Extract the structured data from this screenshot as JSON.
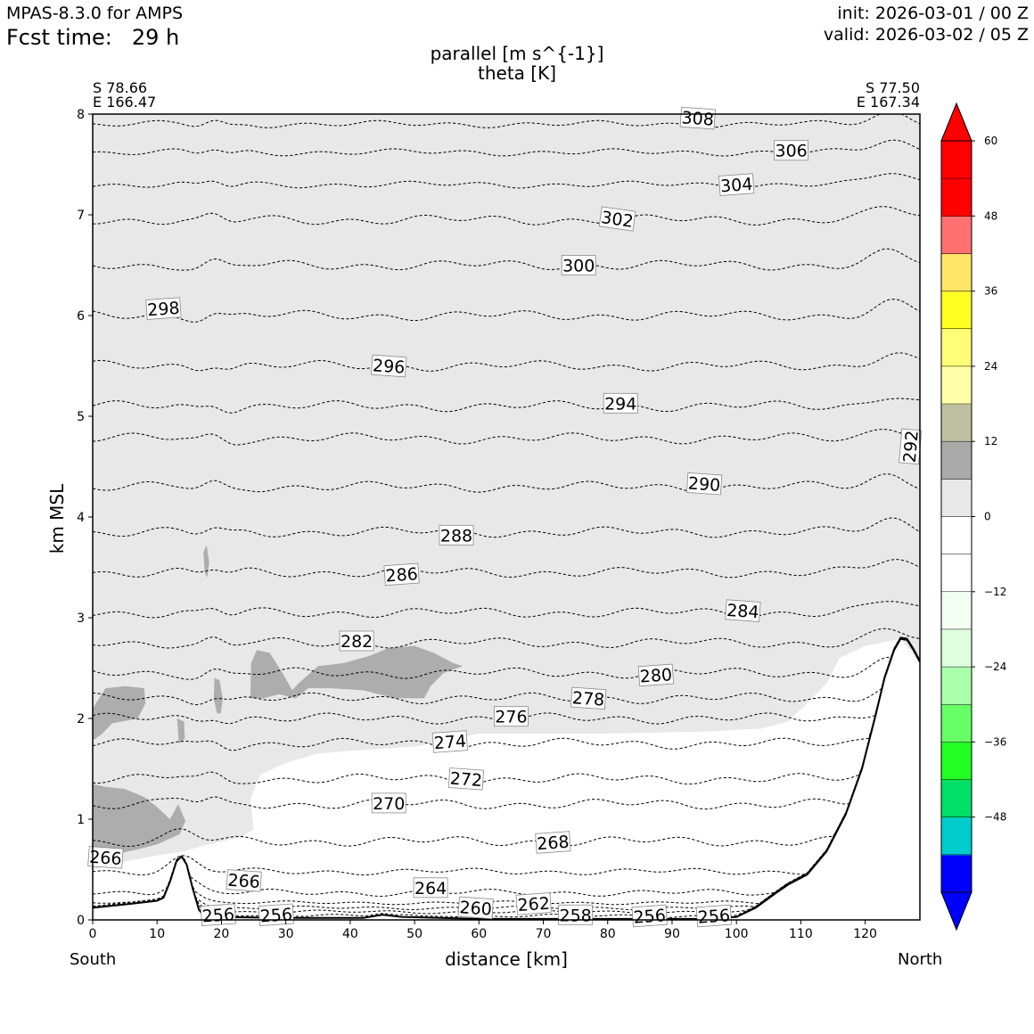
{
  "header": {
    "model": "MPAS-8.3.0 for AMPS",
    "fcst_label": "Fcst time:",
    "fcst_value": "29 h",
    "init": "init: 2026-03-01 / 00 Z",
    "valid": "valid: 2026-03-02 / 05 Z"
  },
  "endpoints": {
    "left_lat": "S 78.66",
    "left_lon": "E 166.47",
    "right_lat": "S 77.50",
    "right_lon": "E 167.34",
    "left_dir": "South",
    "right_dir": "North"
  },
  "chart_data": {
    "type": "cross-section",
    "title": "parallel [m s^{-1}]",
    "subtitle": "theta [K]",
    "xlabel": "distance [km]",
    "ylabel": "km MSL",
    "xlim": [
      0,
      128.5
    ],
    "ylim": [
      0,
      8
    ],
    "xticks": [
      0,
      10,
      20,
      30,
      40,
      50,
      60,
      70,
      80,
      90,
      100,
      110,
      120
    ],
    "yticks": [
      0,
      1,
      2,
      3,
      4,
      5,
      6,
      7,
      8
    ],
    "terrain": [
      [
        0,
        0.12
      ],
      [
        6,
        0.16
      ],
      [
        10,
        0.19
      ],
      [
        11,
        0.22
      ],
      [
        12,
        0.38
      ],
      [
        13,
        0.58
      ],
      [
        13.8,
        0.63
      ],
      [
        14.6,
        0.55
      ],
      [
        15.5,
        0.32
      ],
      [
        16.5,
        0.1
      ],
      [
        17.5,
        0.03
      ],
      [
        30,
        0.02
      ],
      [
        42,
        0.02
      ],
      [
        45,
        0.05
      ],
      [
        48,
        0.03
      ],
      [
        60,
        0.01
      ],
      [
        80,
        0.01
      ],
      [
        96,
        0.01
      ],
      [
        100,
        0.03
      ],
      [
        103,
        0.12
      ],
      [
        106,
        0.26
      ],
      [
        108,
        0.35
      ],
      [
        111,
        0.45
      ],
      [
        114,
        0.68
      ],
      [
        117,
        1.05
      ],
      [
        119.5,
        1.5
      ],
      [
        121.5,
        2.0
      ],
      [
        123,
        2.4
      ],
      [
        124.5,
        2.68
      ],
      [
        125.5,
        2.79
      ],
      [
        126.5,
        2.78
      ],
      [
        127.5,
        2.68
      ],
      [
        128.5,
        2.56
      ]
    ],
    "theta_levels": [
      {
        "v": 256,
        "y": 0.04,
        "amp": 0.01,
        "labels": [
          {
            "x": 19.5,
            "y": 0.05
          },
          {
            "x": 28.5,
            "y": 0.05
          },
          {
            "x": 86.5,
            "y": 0.04
          },
          {
            "x": 96.5,
            "y": 0.04
          }
        ]
      },
      {
        "v": 258,
        "y": 0.08,
        "amp": 0.01,
        "labels": [
          {
            "x": 75,
            "y": 0.05
          }
        ]
      },
      {
        "v": 260,
        "y": 0.12,
        "amp": 0.01,
        "labels": [
          {
            "x": 59.5,
            "y": 0.12
          }
        ]
      },
      {
        "v": 262,
        "y": 0.17,
        "amp": 0.01,
        "labels": [
          {
            "x": 68.5,
            "y": 0.16
          }
        ]
      },
      {
        "v": 264,
        "y": 0.27,
        "amp": 0.02,
        "labels": [
          {
            "x": 52.5,
            "y": 0.32
          }
        ]
      },
      {
        "v": 266,
        "y": 0.48,
        "amp": 0.02,
        "labels": [
          {
            "x": 23.5,
            "y": 0.39
          },
          {
            "x": 2.0,
            "y": 0.62
          }
        ]
      },
      {
        "v": 268,
        "y": 0.78,
        "amp": 0.03,
        "labels": [
          {
            "x": 71.5,
            "y": 0.77
          }
        ]
      },
      {
        "v": 270,
        "y": 1.15,
        "amp": 0.03,
        "labels": [
          {
            "x": 46.0,
            "y": 1.16
          }
        ]
      },
      {
        "v": 272,
        "y": 1.4,
        "amp": 0.03,
        "labels": [
          {
            "x": 58.0,
            "y": 1.4
          }
        ]
      },
      {
        "v": 274,
        "y": 1.75,
        "amp": 0.03,
        "labels": [
          {
            "x": 55.5,
            "y": 1.77
          }
        ]
      },
      {
        "v": 276,
        "y": 2.0,
        "amp": 0.03,
        "labels": [
          {
            "x": 65.0,
            "y": 2.02
          }
        ]
      },
      {
        "v": 278,
        "y": 2.2,
        "amp": 0.03,
        "labels": [
          {
            "x": 77.0,
            "y": 2.2
          }
        ]
      },
      {
        "v": 280,
        "y": 2.45,
        "amp": 0.03,
        "labels": [
          {
            "x": 87.5,
            "y": 2.43
          }
        ]
      },
      {
        "v": 282,
        "y": 2.75,
        "amp": 0.03,
        "labels": [
          {
            "x": 41.0,
            "y": 2.77
          }
        ]
      },
      {
        "v": 284,
        "y": 3.05,
        "amp": 0.03,
        "labels": [
          {
            "x": 101.0,
            "y": 3.07
          }
        ]
      },
      {
        "v": 286,
        "y": 3.45,
        "amp": 0.03,
        "labels": [
          {
            "x": 48.0,
            "y": 3.43
          }
        ]
      },
      {
        "v": 288,
        "y": 3.85,
        "amp": 0.03,
        "labels": [
          {
            "x": 56.5,
            "y": 3.82
          }
        ]
      },
      {
        "v": 290,
        "y": 4.3,
        "amp": 0.03,
        "labels": [
          {
            "x": 95.0,
            "y": 4.33
          }
        ]
      },
      {
        "v": 292,
        "y": 4.78,
        "amp": 0.03,
        "labels": [
          {
            "x": 127.0,
            "y": 4.7
          }
        ]
      },
      {
        "v": 294,
        "y": 5.1,
        "amp": 0.03,
        "labels": [
          {
            "x": 82.0,
            "y": 5.13
          }
        ]
      },
      {
        "v": 296,
        "y": 5.5,
        "amp": 0.03,
        "labels": [
          {
            "x": 46.0,
            "y": 5.5
          }
        ]
      },
      {
        "v": 298,
        "y": 6.0,
        "amp": 0.03,
        "labels": [
          {
            "x": 11.0,
            "y": 6.07
          }
        ]
      },
      {
        "v": 300,
        "y": 6.5,
        "amp": 0.03,
        "labels": [
          {
            "x": 75.5,
            "y": 6.5
          }
        ]
      },
      {
        "v": 302,
        "y": 6.95,
        "amp": 0.03,
        "labels": [
          {
            "x": 81.5,
            "y": 6.96
          }
        ]
      },
      {
        "v": 304,
        "y": 7.3,
        "amp": 0.02,
        "labels": [
          {
            "x": 100.0,
            "y": 7.3
          }
        ]
      },
      {
        "v": 306,
        "y": 7.62,
        "amp": 0.02,
        "labels": [
          {
            "x": 108.5,
            "y": 7.64
          }
        ]
      },
      {
        "v": 308,
        "y": 7.9,
        "amp": 0.02,
        "labels": [
          {
            "x": 94.0,
            "y": 7.96
          }
        ]
      }
    ],
    "wind_fill": {
      "light_12": [
        [
          0,
          8
        ],
        [
          128.5,
          8
        ],
        [
          128.5,
          2.56
        ],
        [
          125.5,
          2.79
        ],
        [
          120,
          2.72
        ],
        [
          116,
          2.6
        ],
        [
          114,
          2.35
        ],
        [
          111,
          2.15
        ],
        [
          108,
          1.97
        ],
        [
          104,
          1.9
        ],
        [
          95,
          1.87
        ],
        [
          80,
          1.85
        ],
        [
          70,
          1.85
        ],
        [
          60,
          1.85
        ],
        [
          50,
          1.72
        ],
        [
          40,
          1.68
        ],
        [
          35,
          1.65
        ],
        [
          30,
          1.56
        ],
        [
          26,
          1.44
        ],
        [
          24.5,
          1.2
        ],
        [
          25,
          0.9
        ],
        [
          23,
          0.82
        ],
        [
          18,
          0.75
        ],
        [
          14,
          0.68
        ],
        [
          10,
          0.64
        ],
        [
          5,
          0.58
        ],
        [
          0,
          0.5
        ]
      ],
      "dark_18": [
        [
          [
            0,
            2.1
          ],
          [
            2,
            2.3
          ],
          [
            5,
            2.32
          ],
          [
            8,
            2.3
          ],
          [
            8.2,
            2.15
          ],
          [
            7,
            2.0
          ],
          [
            3,
            1.95
          ],
          [
            1.5,
            1.85
          ],
          [
            0,
            1.78
          ]
        ],
        [
          [
            0,
            1.35
          ],
          [
            2,
            1.32
          ],
          [
            5,
            1.3
          ],
          [
            8,
            1.22
          ],
          [
            10,
            1.12
          ],
          [
            12,
            1.0
          ],
          [
            13.3,
            1.15
          ],
          [
            14.4,
            0.98
          ],
          [
            13.5,
            0.85
          ],
          [
            10,
            0.75
          ],
          [
            7,
            0.7
          ],
          [
            4,
            0.66
          ],
          [
            0,
            0.68
          ]
        ],
        [
          [
            24.5,
            2.2
          ],
          [
            24.6,
            2.55
          ],
          [
            25.5,
            2.68
          ],
          [
            27.5,
            2.65
          ],
          [
            29.5,
            2.45
          ],
          [
            31,
            2.28
          ],
          [
            32,
            2.35
          ],
          [
            35,
            2.52
          ],
          [
            39,
            2.55
          ],
          [
            43,
            2.62
          ],
          [
            46,
            2.7
          ],
          [
            50,
            2.72
          ],
          [
            53,
            2.65
          ],
          [
            56,
            2.55
          ],
          [
            57.5,
            2.52
          ],
          [
            54.5,
            2.45
          ],
          [
            52.5,
            2.32
          ],
          [
            51.5,
            2.2
          ],
          [
            47,
            2.2
          ],
          [
            42,
            2.28
          ],
          [
            37,
            2.3
          ],
          [
            33.5,
            2.3
          ],
          [
            31.5,
            2.2
          ],
          [
            29,
            2.24
          ],
          [
            26.5,
            2.2
          ]
        ],
        [
          [
            17.2,
            3.65
          ],
          [
            17.7,
            3.72
          ],
          [
            18.1,
            3.55
          ],
          [
            17.8,
            3.4
          ],
          [
            17.4,
            3.45
          ]
        ],
        [
          [
            18.9,
            2.4
          ],
          [
            19.7,
            2.38
          ],
          [
            20.2,
            2.2
          ],
          [
            19.9,
            2.05
          ],
          [
            19.3,
            2.05
          ],
          [
            18.8,
            2.2
          ]
        ],
        [
          [
            13.1,
            2.0
          ],
          [
            14.2,
            1.97
          ],
          [
            14.3,
            1.8
          ],
          [
            13.4,
            1.75
          ]
        ]
      ]
    },
    "colorbar": {
      "ticks": [
        "60",
        "48",
        "36",
        "24",
        "12",
        "0",
        "−12",
        "−24",
        "−36",
        "−48"
      ],
      "tick_values": [
        60,
        48,
        36,
        24,
        12,
        0,
        -12,
        -24,
        -36,
        -48
      ],
      "range": [
        -48,
        60
      ],
      "colors": [
        "#0000ff",
        "#00cccc",
        "#00e066",
        "#22ff22",
        "#66ff66",
        "#aaffaa",
        "#ddffdd",
        "#f2fff2",
        "#ffffff",
        "#ffffff",
        "#e8e8e8",
        "#aaaaaa",
        "#bfbfa1",
        "#ffffaa",
        "#ffff77",
        "#ffff22",
        "#ffe566",
        "#ff7070",
        "#ff0000",
        "#ff0000"
      ],
      "under_color": "#0000ff",
      "over_color": "#ff0000"
    }
  }
}
